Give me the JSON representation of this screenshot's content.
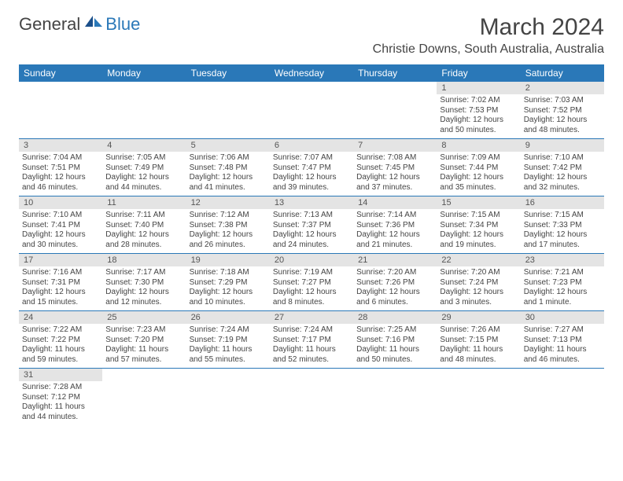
{
  "logo": {
    "general": "General",
    "blue": "Blue"
  },
  "title": {
    "month": "March 2024",
    "location": "Christie Downs, South Australia, Australia"
  },
  "colors": {
    "header_bg": "#2a78b8",
    "header_fg": "#ffffff",
    "daynum_bg": "#e4e4e4",
    "text": "#444444",
    "rule": "#2a78b8"
  },
  "weekdays": [
    "Sunday",
    "Monday",
    "Tuesday",
    "Wednesday",
    "Thursday",
    "Friday",
    "Saturday"
  ],
  "weeks": [
    [
      null,
      null,
      null,
      null,
      null,
      {
        "n": "1",
        "sr": "7:02 AM",
        "ss": "7:53 PM",
        "dl": "12 hours and 50 minutes."
      },
      {
        "n": "2",
        "sr": "7:03 AM",
        "ss": "7:52 PM",
        "dl": "12 hours and 48 minutes."
      }
    ],
    [
      {
        "n": "3",
        "sr": "7:04 AM",
        "ss": "7:51 PM",
        "dl": "12 hours and 46 minutes."
      },
      {
        "n": "4",
        "sr": "7:05 AM",
        "ss": "7:49 PM",
        "dl": "12 hours and 44 minutes."
      },
      {
        "n": "5",
        "sr": "7:06 AM",
        "ss": "7:48 PM",
        "dl": "12 hours and 41 minutes."
      },
      {
        "n": "6",
        "sr": "7:07 AM",
        "ss": "7:47 PM",
        "dl": "12 hours and 39 minutes."
      },
      {
        "n": "7",
        "sr": "7:08 AM",
        "ss": "7:45 PM",
        "dl": "12 hours and 37 minutes."
      },
      {
        "n": "8",
        "sr": "7:09 AM",
        "ss": "7:44 PM",
        "dl": "12 hours and 35 minutes."
      },
      {
        "n": "9",
        "sr": "7:10 AM",
        "ss": "7:42 PM",
        "dl": "12 hours and 32 minutes."
      }
    ],
    [
      {
        "n": "10",
        "sr": "7:10 AM",
        "ss": "7:41 PM",
        "dl": "12 hours and 30 minutes."
      },
      {
        "n": "11",
        "sr": "7:11 AM",
        "ss": "7:40 PM",
        "dl": "12 hours and 28 minutes."
      },
      {
        "n": "12",
        "sr": "7:12 AM",
        "ss": "7:38 PM",
        "dl": "12 hours and 26 minutes."
      },
      {
        "n": "13",
        "sr": "7:13 AM",
        "ss": "7:37 PM",
        "dl": "12 hours and 24 minutes."
      },
      {
        "n": "14",
        "sr": "7:14 AM",
        "ss": "7:36 PM",
        "dl": "12 hours and 21 minutes."
      },
      {
        "n": "15",
        "sr": "7:15 AM",
        "ss": "7:34 PM",
        "dl": "12 hours and 19 minutes."
      },
      {
        "n": "16",
        "sr": "7:15 AM",
        "ss": "7:33 PM",
        "dl": "12 hours and 17 minutes."
      }
    ],
    [
      {
        "n": "17",
        "sr": "7:16 AM",
        "ss": "7:31 PM",
        "dl": "12 hours and 15 minutes."
      },
      {
        "n": "18",
        "sr": "7:17 AM",
        "ss": "7:30 PM",
        "dl": "12 hours and 12 minutes."
      },
      {
        "n": "19",
        "sr": "7:18 AM",
        "ss": "7:29 PM",
        "dl": "12 hours and 10 minutes."
      },
      {
        "n": "20",
        "sr": "7:19 AM",
        "ss": "7:27 PM",
        "dl": "12 hours and 8 minutes."
      },
      {
        "n": "21",
        "sr": "7:20 AM",
        "ss": "7:26 PM",
        "dl": "12 hours and 6 minutes."
      },
      {
        "n": "22",
        "sr": "7:20 AM",
        "ss": "7:24 PM",
        "dl": "12 hours and 3 minutes."
      },
      {
        "n": "23",
        "sr": "7:21 AM",
        "ss": "7:23 PM",
        "dl": "12 hours and 1 minute."
      }
    ],
    [
      {
        "n": "24",
        "sr": "7:22 AM",
        "ss": "7:22 PM",
        "dl": "11 hours and 59 minutes."
      },
      {
        "n": "25",
        "sr": "7:23 AM",
        "ss": "7:20 PM",
        "dl": "11 hours and 57 minutes."
      },
      {
        "n": "26",
        "sr": "7:24 AM",
        "ss": "7:19 PM",
        "dl": "11 hours and 55 minutes."
      },
      {
        "n": "27",
        "sr": "7:24 AM",
        "ss": "7:17 PM",
        "dl": "11 hours and 52 minutes."
      },
      {
        "n": "28",
        "sr": "7:25 AM",
        "ss": "7:16 PM",
        "dl": "11 hours and 50 minutes."
      },
      {
        "n": "29",
        "sr": "7:26 AM",
        "ss": "7:15 PM",
        "dl": "11 hours and 48 minutes."
      },
      {
        "n": "30",
        "sr": "7:27 AM",
        "ss": "7:13 PM",
        "dl": "11 hours and 46 minutes."
      }
    ],
    [
      {
        "n": "31",
        "sr": "7:28 AM",
        "ss": "7:12 PM",
        "dl": "11 hours and 44 minutes."
      },
      null,
      null,
      null,
      null,
      null,
      null
    ]
  ],
  "labels": {
    "sunrise": "Sunrise:",
    "sunset": "Sunset:",
    "daylight": "Daylight:"
  }
}
